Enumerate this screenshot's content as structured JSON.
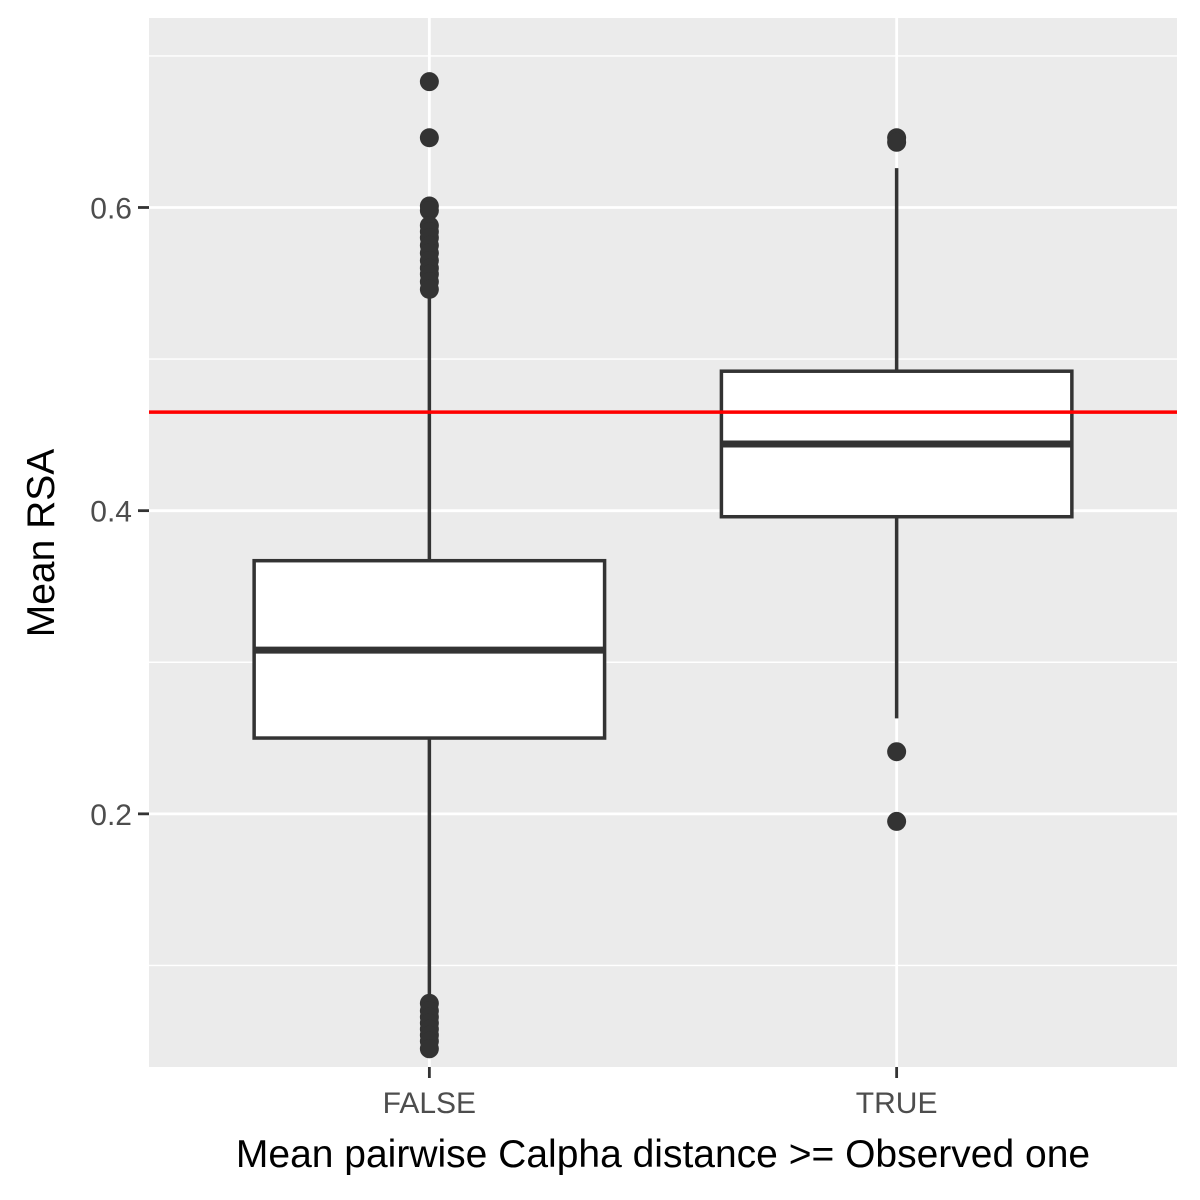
{
  "chart_data": {
    "type": "boxplot",
    "title": "",
    "xlabel": "Mean pairwise Calpha distance >= Observed one",
    "ylabel": "Mean RSA",
    "ylim": [
      0.033,
      0.725
    ],
    "y_ticks": [
      0.2,
      0.4,
      0.6
    ],
    "y_tick_labels": [
      "0.2",
      "0.4",
      "0.6"
    ],
    "categories": [
      "FALSE",
      "TRUE"
    ],
    "boxes": [
      {
        "category": "FALSE",
        "q1": 0.25,
        "median": 0.308,
        "q3": 0.367,
        "whisker_low": 0.077,
        "whisker_high": 0.545,
        "outliers": [
          0.683,
          0.646,
          0.601,
          0.598,
          0.588,
          0.584,
          0.58,
          0.575,
          0.57,
          0.565,
          0.56,
          0.556,
          0.551,
          0.546,
          0.075,
          0.07,
          0.066,
          0.062,
          0.058,
          0.054,
          0.05,
          0.045
        ]
      },
      {
        "category": "TRUE",
        "q1": 0.396,
        "median": 0.444,
        "q3": 0.492,
        "whisker_low": 0.263,
        "whisker_high": 0.626,
        "outliers": [
          0.646,
          0.643,
          0.241,
          0.195
        ]
      }
    ],
    "reference_line": {
      "y": 0.465,
      "color": "#ff0000"
    },
    "panel_background": "#ebebeb",
    "grid_color": "#ffffff",
    "box_fill": "#ffffff",
    "box_stroke": "#333333",
    "grid": true,
    "legend": "none"
  }
}
